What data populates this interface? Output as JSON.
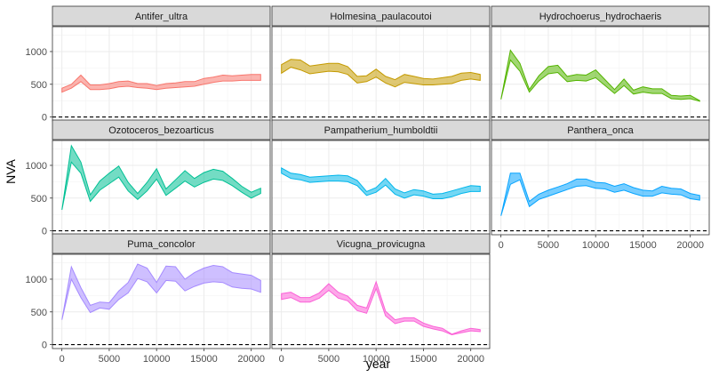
{
  "chart_data": {
    "type": "area",
    "layout": "facet-grid",
    "xlabel": "year",
    "ylabel": "NVA",
    "xlim": [
      -1000,
      22000
    ],
    "ylim": [
      -60,
      1380
    ],
    "x_ticks": [
      0,
      5000,
      10000,
      15000,
      20000
    ],
    "y_ticks": [
      0,
      500,
      1000
    ],
    "reference_line": {
      "y": 0,
      "style": "dashed"
    },
    "grid": true,
    "legend": "none",
    "x": [
      0,
      1000,
      2000,
      3000,
      4000,
      5000,
      6000,
      7000,
      8000,
      9000,
      10000,
      11000,
      12000,
      13000,
      14000,
      15000,
      16000,
      17000,
      18000,
      19000,
      20000,
      21000
    ],
    "panels": [
      {
        "name": "Antifer_ultra",
        "color": "#F8766D",
        "upper": [
          440,
          500,
          640,
          490,
          490,
          510,
          540,
          550,
          510,
          510,
          480,
          510,
          520,
          540,
          540,
          590,
          610,
          640,
          630,
          640,
          650,
          650
        ],
        "lower": [
          380,
          440,
          540,
          420,
          420,
          430,
          460,
          470,
          450,
          440,
          420,
          440,
          450,
          460,
          470,
          500,
          530,
          550,
          550,
          560,
          560,
          560
        ]
      },
      {
        "name": "Holmesina_paulacoutoi",
        "color": "#C49A00",
        "upper": [
          800,
          880,
          870,
          780,
          800,
          820,
          820,
          770,
          620,
          630,
          730,
          620,
          570,
          650,
          620,
          590,
          580,
          600,
          620,
          670,
          680,
          650
        ],
        "lower": [
          670,
          760,
          720,
          660,
          680,
          700,
          690,
          650,
          520,
          540,
          610,
          520,
          460,
          530,
          510,
          490,
          490,
          500,
          510,
          560,
          580,
          560
        ]
      },
      {
        "name": "Hydrochoerus_hydrochaeris",
        "color": "#53B400",
        "upper": [
          270,
          1020,
          820,
          420,
          630,
          770,
          790,
          620,
          650,
          640,
          720,
          570,
          420,
          580,
          410,
          460,
          430,
          430,
          330,
          320,
          330,
          250
        ],
        "lower": [
          270,
          870,
          700,
          380,
          550,
          660,
          680,
          540,
          560,
          550,
          600,
          480,
          360,
          480,
          350,
          380,
          360,
          360,
          280,
          270,
          280,
          240
        ]
      },
      {
        "name": "Ozotoceros_bezoarticus",
        "color": "#00C094",
        "upper": [
          320,
          1300,
          1050,
          550,
          760,
          880,
          990,
          740,
          570,
          740,
          950,
          640,
          780,
          920,
          800,
          890,
          940,
          910,
          800,
          680,
          590,
          650
        ],
        "lower": [
          320,
          1050,
          880,
          450,
          620,
          720,
          820,
          610,
          480,
          610,
          790,
          540,
          650,
          760,
          670,
          740,
          790,
          770,
          690,
          590,
          500,
          570
        ]
      },
      {
        "name": "Pampatherium_humboldtii",
        "color": "#00B6EB",
        "upper": [
          960,
          880,
          860,
          820,
          830,
          840,
          850,
          840,
          770,
          600,
          660,
          800,
          640,
          580,
          630,
          610,
          560,
          570,
          610,
          650,
          690,
          680
        ],
        "lower": [
          880,
          800,
          780,
          740,
          750,
          760,
          760,
          750,
          690,
          540,
          590,
          700,
          560,
          500,
          550,
          530,
          490,
          490,
          520,
          570,
          600,
          600
        ]
      },
      {
        "name": "Panthera_onca",
        "color": "#06A4FF",
        "upper": [
          230,
          880,
          880,
          450,
          560,
          620,
          670,
          720,
          790,
          790,
          740,
          730,
          680,
          720,
          660,
          620,
          610,
          680,
          650,
          640,
          570,
          540
        ],
        "lower": [
          230,
          710,
          780,
          370,
          480,
          530,
          580,
          630,
          680,
          690,
          650,
          640,
          590,
          620,
          570,
          530,
          530,
          580,
          560,
          550,
          490,
          470
        ]
      },
      {
        "name": "Puma_concolor",
        "color": "#A58AFF",
        "upper": [
          380,
          1190,
          870,
          600,
          650,
          640,
          820,
          950,
          1230,
          1170,
          950,
          1200,
          1190,
          1000,
          1100,
          1170,
          1210,
          1190,
          1100,
          1080,
          1060,
          980
        ],
        "lower": [
          380,
          1000,
          720,
          490,
          560,
          540,
          690,
          790,
          1010,
          960,
          790,
          980,
          970,
          820,
          890,
          940,
          960,
          950,
          880,
          860,
          850,
          800
        ]
      },
      {
        "name": "Vicugna_provicugna",
        "color": "#FB61D7",
        "upper": [
          780,
          800,
          720,
          720,
          790,
          930,
          800,
          740,
          600,
          560,
          960,
          510,
          380,
          410,
          410,
          330,
          280,
          250,
          160,
          210,
          250,
          230
        ],
        "lower": [
          690,
          720,
          650,
          650,
          710,
          830,
          710,
          670,
          520,
          480,
          860,
          440,
          320,
          360,
          360,
          280,
          240,
          210,
          150,
          180,
          210,
          200
        ]
      }
    ]
  }
}
